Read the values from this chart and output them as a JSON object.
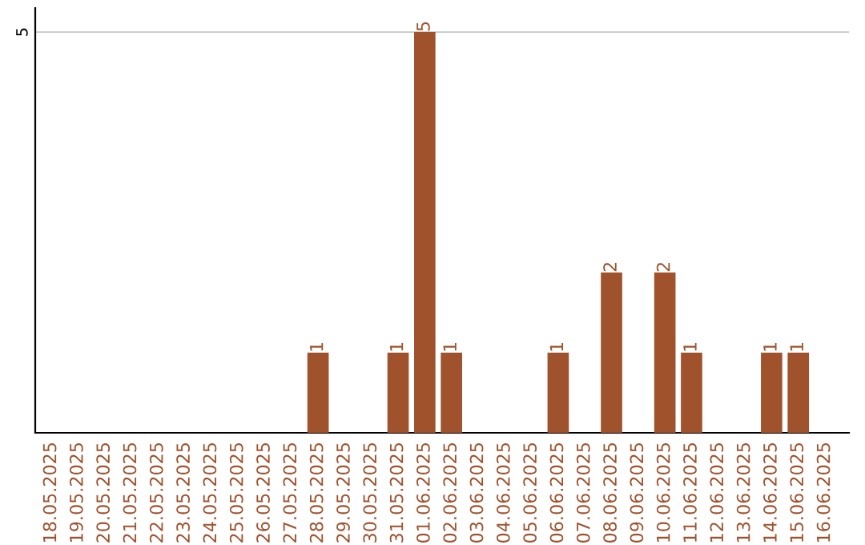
{
  "chart_data": {
    "type": "bar",
    "categories": [
      "18.05.2025",
      "19.05.2025",
      "20.05.2025",
      "21.05.2025",
      "22.05.2025",
      "23.05.2025",
      "24.05.2025",
      "25.05.2025",
      "26.05.2025",
      "27.05.2025",
      "28.05.2025",
      "29.05.2025",
      "30.05.2025",
      "31.05.2025",
      "01.06.2025",
      "02.06.2025",
      "03.06.2025",
      "04.06.2025",
      "05.06.2025",
      "06.06.2025",
      "07.06.2025",
      "08.06.2025",
      "09.06.2025",
      "10.06.2025",
      "11.06.2025",
      "12.06.2025",
      "13.06.2025",
      "14.06.2025",
      "15.06.2025",
      "16.06.2025"
    ],
    "values": [
      0,
      0,
      0,
      0,
      0,
      0,
      0,
      0,
      0,
      0,
      1,
      0,
      0,
      1,
      5,
      1,
      0,
      0,
      0,
      1,
      0,
      2,
      0,
      2,
      1,
      0,
      0,
      1,
      1,
      0
    ],
    "value_labels": [
      null,
      null,
      null,
      null,
      null,
      null,
      null,
      null,
      null,
      null,
      "1",
      null,
      null,
      "1",
      "5",
      "1",
      null,
      null,
      null,
      "1",
      null,
      "2",
      null,
      "2",
      "1",
      null,
      null,
      "1",
      "1",
      null
    ],
    "color": "#a0522d",
    "ylim": [
      0,
      5.3
    ],
    "yticks": [
      5
    ],
    "grid": "y"
  }
}
